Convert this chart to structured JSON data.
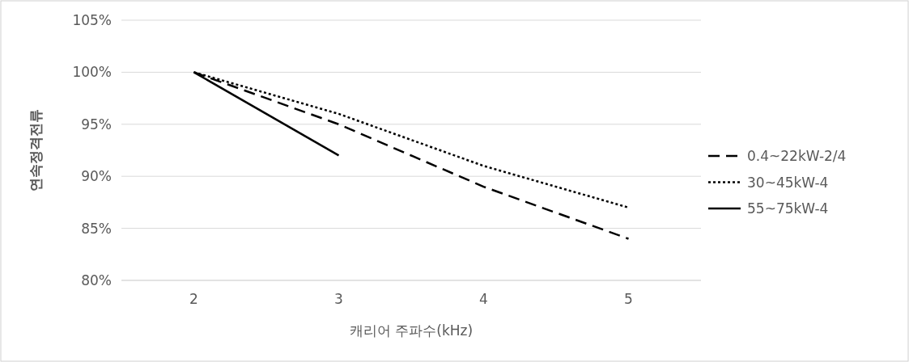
{
  "chart_data": {
    "type": "line",
    "xlabel": "캐리어 주파수(kHz)",
    "ylabel": "연속정격전류",
    "categories": [
      "2",
      "3",
      "4",
      "5"
    ],
    "series": [
      {
        "name": "0.4~22kW-2/4",
        "color": "#000000",
        "line_style": "dashed",
        "values": [
          100,
          95,
          89,
          84
        ]
      },
      {
        "name": "30~45kW-4",
        "color": "#000000",
        "line_style": "dotted",
        "values": [
          100,
          96,
          91,
          87
        ]
      },
      {
        "name": "55~75kW-4",
        "color": "#000000",
        "line_style": "solid",
        "values": [
          100,
          92,
          null,
          null
        ]
      }
    ],
    "ylim": [
      80,
      105
    ],
    "yticks": [
      {
        "value": 80,
        "label": "80%"
      },
      {
        "value": 85,
        "label": "85%"
      },
      {
        "value": 90,
        "label": "90%"
      },
      {
        "value": 95,
        "label": "95%"
      },
      {
        "value": 100,
        "label": "100%"
      },
      {
        "value": 105,
        "label": "105%"
      }
    ],
    "grid": "y",
    "legend": "right",
    "marker": "none"
  }
}
